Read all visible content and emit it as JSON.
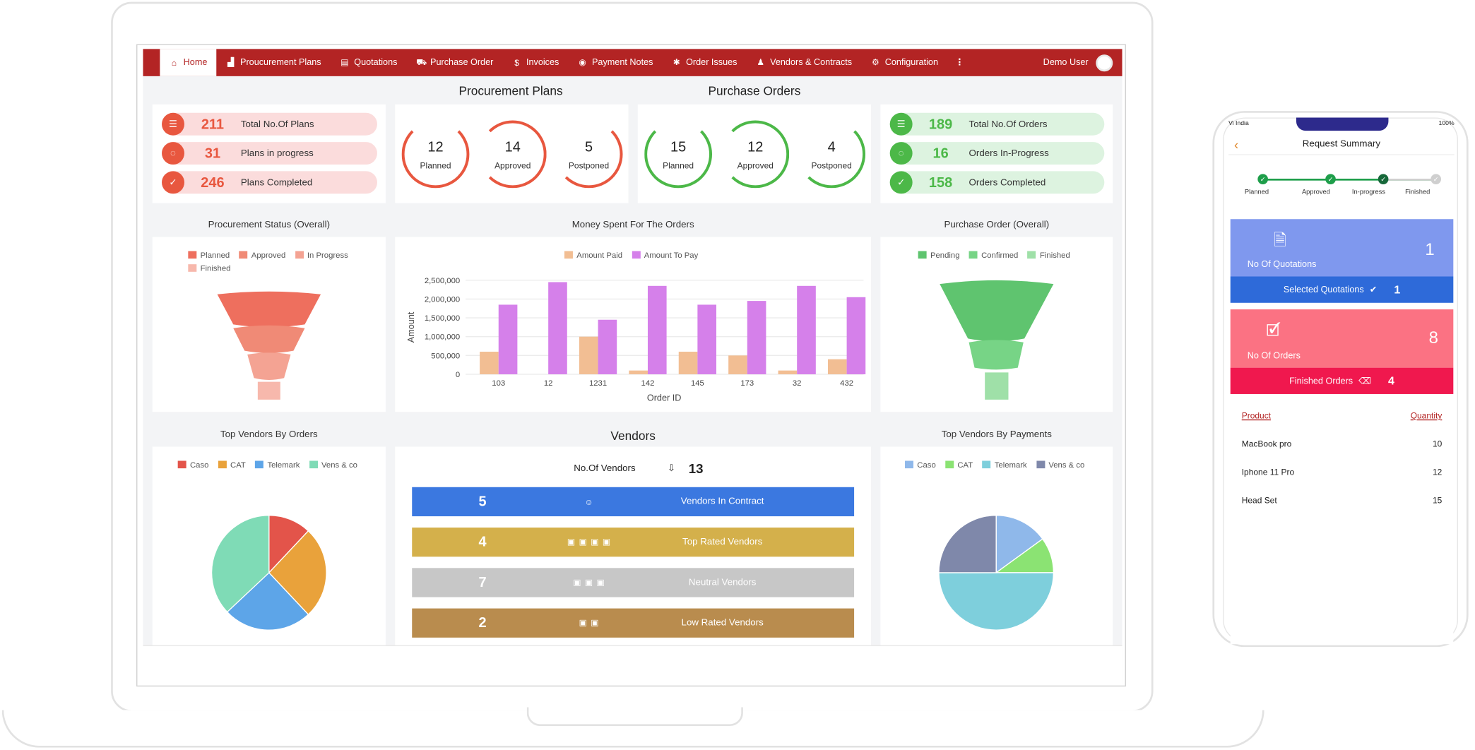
{
  "nav": {
    "items": [
      {
        "label": "Home",
        "icon": "home-icon",
        "glyph": "⌂"
      },
      {
        "label": "Proucurement Plans",
        "icon": "chart-icon",
        "glyph": "▟"
      },
      {
        "label": "Quotations",
        "icon": "clipboard-icon",
        "glyph": "▤"
      },
      {
        "label": "Purchase Order",
        "icon": "truck-icon",
        "glyph": "⛟"
      },
      {
        "label": "Invoices",
        "icon": "invoice-icon",
        "glyph": "$"
      },
      {
        "label": "Payment Notes",
        "icon": "money-icon",
        "glyph": "◉"
      },
      {
        "label": "Order Issues",
        "icon": "bug-icon",
        "glyph": "✱"
      },
      {
        "label": "Vendors & Contracts",
        "icon": "person-icon",
        "glyph": "♟"
      },
      {
        "label": "Configuration",
        "icon": "gear-icon",
        "glyph": "⚙"
      }
    ],
    "more": "⋮",
    "user": "Demo User"
  },
  "procurement": {
    "title": "Procurement Plans",
    "stats": [
      {
        "value": "211",
        "label": "Total No.Of Plans",
        "glyph": "☰"
      },
      {
        "value": "31",
        "label": "Plans in progress",
        "glyph": "◌"
      },
      {
        "value": "246",
        "label": "Plans Completed",
        "glyph": "✓"
      }
    ],
    "rings": [
      {
        "value": "12",
        "label": "Planned"
      },
      {
        "value": "14",
        "label": "Approved"
      },
      {
        "value": "5",
        "label": "Postponed"
      }
    ]
  },
  "purchase": {
    "title": "Purchase Orders",
    "rings": [
      {
        "value": "15",
        "label": "Planned"
      },
      {
        "value": "12",
        "label": "Approved"
      },
      {
        "value": "4",
        "label": "Postponed"
      }
    ],
    "stats": [
      {
        "value": "189",
        "label": "Total No.Of Orders",
        "glyph": "☰"
      },
      {
        "value": "16",
        "label": "Orders In-Progress",
        "glyph": "◌"
      },
      {
        "value": "158",
        "label": "Orders Completed",
        "glyph": "✓"
      }
    ]
  },
  "colors": {
    "red": "#e8573f",
    "redLight": "#fbdcdc",
    "green": "#4cb848",
    "greenLight": "#ddf3e0",
    "navRed": "#b32424"
  },
  "chart_data": [
    {
      "type": "funnel",
      "title": "Procurement Status (Overall)",
      "legend": [
        "Planned",
        "Approved",
        "In Progress",
        "Finished"
      ],
      "colors": [
        "#ee6f5e",
        "#f08a76",
        "#f4a393",
        "#f7b8ac"
      ]
    },
    {
      "type": "bar",
      "title": "Money Spent For The Orders",
      "xlabel": "Order ID",
      "ylabel": "Amount",
      "ylim": [
        0,
        2500000
      ],
      "yticks": [
        "0",
        "500,000",
        "1,000,000",
        "1,500,000",
        "2,000,000",
        "2,500,000"
      ],
      "categories": [
        "103",
        "12",
        "1231",
        "142",
        "145",
        "173",
        "32",
        "432"
      ],
      "series": [
        {
          "name": "Amount Paid",
          "color": "#f2be93",
          "values": [
            600000,
            0,
            1000000,
            100000,
            600000,
            500000,
            100000,
            400000
          ]
        },
        {
          "name": "Amount To Pay",
          "color": "#d580ea",
          "values": [
            1850000,
            2450000,
            1450000,
            2350000,
            1850000,
            1950000,
            2350000,
            2050000
          ]
        }
      ]
    },
    {
      "type": "funnel",
      "title": "Purchase Order (Overall)",
      "legend": [
        "Pending",
        "Confirmed",
        "Finished"
      ],
      "colors": [
        "#5fc46f",
        "#77d486",
        "#9fe0a8"
      ]
    },
    {
      "type": "pie",
      "title": "Top Vendors By Orders",
      "labels": [
        "Caso",
        "CAT",
        "Telemark",
        "Vens & co"
      ],
      "colors": [
        "#e3544a",
        "#e9a23b",
        "#5da5e8",
        "#7fdbb6"
      ],
      "values": [
        12,
        26,
        25,
        37
      ]
    },
    {
      "type": "pie",
      "title": "Top Vendors By Payments",
      "labels": [
        "Caso",
        "CAT",
        "Telemark",
        "Vens & co"
      ],
      "colors": [
        "#8fb8ea",
        "#8be373",
        "#7ecfdc",
        "#7f88aa"
      ],
      "values": [
        15,
        10,
        50,
        25
      ]
    }
  ],
  "vendors": {
    "title": "Vendors",
    "count_label": "No.Of Vendors",
    "count_glyph": "⇩",
    "count": "13",
    "rows": [
      {
        "value": "5",
        "glyph": "☺",
        "label": "Vendors In Contract",
        "color": "#3b78e0"
      },
      {
        "value": "4",
        "glyph": "▣▣▣▣",
        "label": "Top Rated Vendors",
        "color": "#d4b04b"
      },
      {
        "value": "7",
        "glyph": "▣▣▣",
        "label": "Neutral Vendors",
        "color": "#c7c7c7"
      },
      {
        "value": "2",
        "glyph": "▣▣",
        "label": "Low Rated Vendors",
        "color": "#b98c4e"
      }
    ]
  },
  "phone": {
    "carrier": "Vi India",
    "battery": "100%",
    "title": "Request Summary",
    "steps": [
      "Planned",
      "Approved",
      "In-progress",
      "Finished"
    ],
    "quotations": {
      "label": "No Of Quotations",
      "value": "1",
      "sub_label": "Selected Quotations",
      "sub_value": "1"
    },
    "orders": {
      "label": "No Of Orders",
      "value": "8",
      "sub_label": "Finished Orders",
      "sub_value": "4"
    },
    "table": {
      "headers": [
        "Product",
        "Quantity"
      ],
      "rows": [
        [
          "MacBook pro",
          "10"
        ],
        [
          "Iphone 11 Pro",
          "12"
        ],
        [
          "Head Set",
          "15"
        ]
      ]
    }
  }
}
